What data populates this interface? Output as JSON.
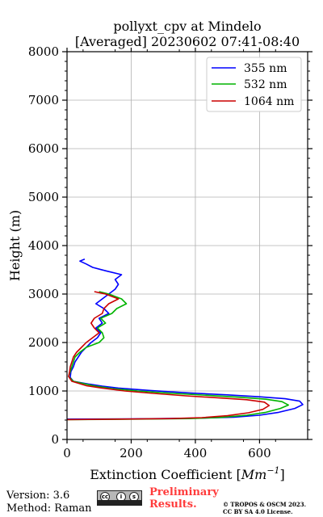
{
  "chart_data": {
    "type": "line",
    "title": "pollyxt_cpv at Mindelo",
    "subtitle": "[Averaged] 20230602 07:41-08:40",
    "xlabel": "Extinction Coefficient [",
    "xlabel_unit": "Mm",
    "xlabel_unit_exp": "−1",
    "xlabel_close": "]",
    "ylabel": "Height (m)",
    "xlim": [
      0,
      750
    ],
    "ylim": [
      0,
      8000
    ],
    "xticks": [
      "0",
      "200",
      "400",
      "600"
    ],
    "xtick_values": [
      0,
      200,
      400,
      600
    ],
    "yticks": [
      "0",
      "1000",
      "2000",
      "3000",
      "4000",
      "5000",
      "6000",
      "7000",
      "8000"
    ],
    "ytick_values": [
      0,
      1000,
      2000,
      3000,
      4000,
      5000,
      6000,
      7000,
      8000
    ],
    "grid": true,
    "legend_position": "top-right",
    "series": [
      {
        "name": "355 nm",
        "color": "#0000ff",
        "points": [
          [
            0,
            420
          ],
          [
            200,
            425
          ],
          [
            420,
            440
          ],
          [
            520,
            460
          ],
          [
            600,
            500
          ],
          [
            660,
            560
          ],
          [
            710,
            640
          ],
          [
            735,
            720
          ],
          [
            725,
            790
          ],
          [
            680,
            840
          ],
          [
            600,
            880
          ],
          [
            500,
            920
          ],
          [
            380,
            960
          ],
          [
            260,
            1010
          ],
          [
            160,
            1060
          ],
          [
            110,
            1100
          ],
          [
            70,
            1140
          ],
          [
            20,
            1200
          ],
          [
            10,
            1280
          ],
          [
            12,
            1400
          ],
          [
            20,
            1500
          ],
          [
            25,
            1600
          ],
          [
            35,
            1700
          ],
          [
            45,
            1800
          ],
          [
            60,
            1900
          ],
          [
            75,
            2000
          ],
          [
            95,
            2100
          ],
          [
            105,
            2200
          ],
          [
            90,
            2300
          ],
          [
            110,
            2400
          ],
          [
            100,
            2500
          ],
          [
            130,
            2600
          ],
          [
            115,
            2700
          ],
          [
            90,
            2800
          ],
          [
            110,
            2900
          ],
          [
            130,
            3000
          ],
          [
            150,
            3100
          ],
          [
            160,
            3200
          ],
          [
            150,
            3300
          ],
          [
            170,
            3400
          ],
          [
            120,
            3480
          ],
          [
            80,
            3550
          ],
          [
            60,
            3620
          ],
          [
            40,
            3680
          ],
          [
            55,
            3720
          ]
        ]
      },
      {
        "name": "532 nm",
        "color": "#00b400",
        "points": [
          [
            0,
            410
          ],
          [
            150,
            415
          ],
          [
            380,
            430
          ],
          [
            480,
            455
          ],
          [
            560,
            500
          ],
          [
            620,
            560
          ],
          [
            665,
            640
          ],
          [
            690,
            710
          ],
          [
            670,
            780
          ],
          [
            620,
            830
          ],
          [
            540,
            870
          ],
          [
            440,
            910
          ],
          [
            330,
            950
          ],
          [
            220,
            1000
          ],
          [
            140,
            1050
          ],
          [
            80,
            1110
          ],
          [
            20,
            1200
          ],
          [
            5,
            1300
          ],
          [
            10,
            1400
          ],
          [
            15,
            1500
          ],
          [
            20,
            1600
          ],
          [
            25,
            1700
          ],
          [
            40,
            1800
          ],
          [
            60,
            1900
          ],
          [
            100,
            2000
          ],
          [
            115,
            2100
          ],
          [
            110,
            2200
          ],
          [
            95,
            2300
          ],
          [
            120,
            2400
          ],
          [
            105,
            2500
          ],
          [
            140,
            2600
          ],
          [
            155,
            2700
          ],
          [
            185,
            2800
          ],
          [
            170,
            2900
          ],
          [
            130,
            3000
          ],
          [
            100,
            3050
          ]
        ]
      },
      {
        "name": "1064 nm",
        "color": "#cc0000",
        "points": [
          [
            0,
            410
          ],
          [
            100,
            415
          ],
          [
            320,
            430
          ],
          [
            420,
            450
          ],
          [
            500,
            490
          ],
          [
            565,
            550
          ],
          [
            610,
            620
          ],
          [
            630,
            700
          ],
          [
            615,
            770
          ],
          [
            560,
            820
          ],
          [
            470,
            860
          ],
          [
            370,
            900
          ],
          [
            270,
            950
          ],
          [
            180,
            1000
          ],
          [
            110,
            1060
          ],
          [
            60,
            1110
          ],
          [
            15,
            1200
          ],
          [
            5,
            1300
          ],
          [
            8,
            1400
          ],
          [
            10,
            1500
          ],
          [
            15,
            1600
          ],
          [
            20,
            1700
          ],
          [
            30,
            1800
          ],
          [
            45,
            1900
          ],
          [
            60,
            2000
          ],
          [
            80,
            2100
          ],
          [
            100,
            2200
          ],
          [
            85,
            2300
          ],
          [
            75,
            2400
          ],
          [
            85,
            2500
          ],
          [
            110,
            2600
          ],
          [
            115,
            2700
          ],
          [
            130,
            2800
          ],
          [
            160,
            2900
          ],
          [
            120,
            3000
          ],
          [
            85,
            3050
          ]
        ]
      }
    ]
  },
  "footer": {
    "version": "Version: 3.6",
    "method": "Method: Raman",
    "preliminary_line1": "Preliminary",
    "preliminary_line2": "Results.",
    "copyright_line1": "© TROPOS & OSCM 2023.",
    "copyright_line2": "CC BY SA 4.0 License.",
    "cc_symbols": [
      "cc",
      "i",
      "s"
    ],
    "cc_colors": {
      "badge": "#b7b7b7",
      "bar": "#222222"
    },
    "preliminary_color": "#ff3b3b"
  }
}
